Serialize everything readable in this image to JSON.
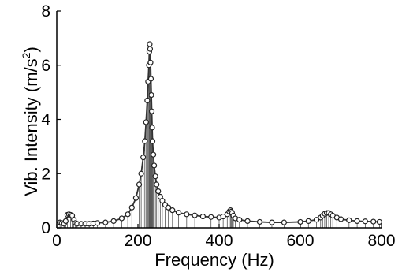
{
  "chart_data": {
    "type": "line",
    "title": "",
    "xlabel": "Frequency (Hz)",
    "ylabel": "Vib. Intensity (m/s",
    "ylabel_sup": "2",
    "ylabel_close": ")",
    "xlim": [
      0,
      800
    ],
    "ylim": [
      0,
      8
    ],
    "xticks": [
      "0",
      "200",
      "400",
      "600",
      "800"
    ],
    "yticks": [
      "0",
      "2",
      "4",
      "6",
      "8"
    ],
    "grid": false,
    "marker": "open-circle",
    "style": "stem-with-markers",
    "colors": {
      "line": "#333333",
      "marker_edge": "#222222",
      "marker_fill": "#ffffff",
      "stem": "#555555"
    },
    "x": [
      8,
      12,
      18,
      22,
      26,
      30,
      34,
      38,
      42,
      46,
      50,
      60,
      70,
      80,
      90,
      100,
      120,
      140,
      160,
      175,
      185,
      195,
      203,
      208,
      213,
      217,
      220,
      223,
      225,
      227,
      228,
      229,
      230,
      231,
      232,
      233,
      234,
      235,
      236,
      238,
      240,
      243,
      246,
      250,
      255,
      260,
      267,
      275,
      285,
      300,
      320,
      340,
      360,
      380,
      400,
      410,
      420,
      425,
      428,
      430,
      432,
      435,
      440,
      450,
      470,
      500,
      530,
      560,
      600,
      620,
      640,
      650,
      655,
      660,
      665,
      670,
      675,
      680,
      690,
      700,
      720,
      740,
      760,
      780,
      795
    ],
    "values": [
      0.2,
      0.18,
      0.15,
      0.25,
      0.48,
      0.5,
      0.48,
      0.45,
      0.3,
      0.18,
      0.15,
      0.15,
      0.15,
      0.15,
      0.16,
      0.18,
      0.2,
      0.25,
      0.35,
      0.5,
      0.75,
      1.1,
      1.6,
      2.0,
      2.6,
      3.2,
      3.9,
      4.7,
      5.4,
      6.0,
      6.5,
      6.78,
      6.6,
      6.1,
      5.5,
      4.9,
      4.3,
      3.7,
      3.2,
      2.7,
      2.3,
      1.9,
      1.6,
      1.35,
      1.15,
      1.0,
      0.85,
      0.75,
      0.65,
      0.56,
      0.5,
      0.46,
      0.42,
      0.4,
      0.38,
      0.42,
      0.5,
      0.6,
      0.65,
      0.6,
      0.55,
      0.45,
      0.35,
      0.3,
      0.25,
      0.22,
      0.2,
      0.2,
      0.22,
      0.25,
      0.3,
      0.38,
      0.45,
      0.52,
      0.55,
      0.55,
      0.5,
      0.45,
      0.38,
      0.32,
      0.28,
      0.25,
      0.24,
      0.23,
      0.22
    ]
  }
}
